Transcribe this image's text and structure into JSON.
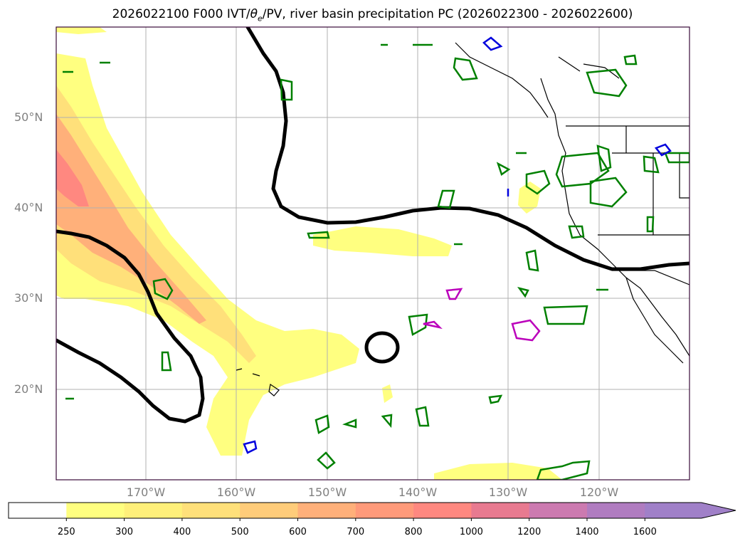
{
  "title": "2026022100 F000 IVT/θe/PV, river basin precipitation PC (2026022300 - 2026022600)",
  "title_parts": {
    "prefix": "2026022100 F000 IVT/",
    "theta": "θ",
    "sub": "e",
    "suffix": "/PV, river basin precipitation PC (2026022300 - 2026022600)"
  },
  "latitude_labels": [
    "50°N",
    "40°N",
    "30°N",
    "20°N"
  ],
  "longitude_labels": [
    "170°W",
    "160°W",
    "150°W",
    "140°W",
    "130°W",
    "120°W"
  ],
  "colorbar": {
    "ticks": [
      "250",
      "300",
      "400",
      "500",
      "600",
      "700",
      "800",
      "1000",
      "1200",
      "1400",
      "1600"
    ],
    "colors": [
      "#ffffff",
      "#ffff80",
      "#fff07a",
      "#ffe07a",
      "#ffcc7a",
      "#ffb07a",
      "#ff9a7a",
      "#ff8880",
      "#e87a90",
      "#cc7ab0",
      "#b07cc0",
      "#a080c8"
    ]
  },
  "colors": {
    "frame": "#3a0a3a",
    "pv_contour": "#000000",
    "precip_green": "#008000",
    "precip_blue": "#0000dd",
    "precip_magenta": "#bb00bb",
    "grid": "#b0b0b0",
    "coast": "#000000"
  }
}
